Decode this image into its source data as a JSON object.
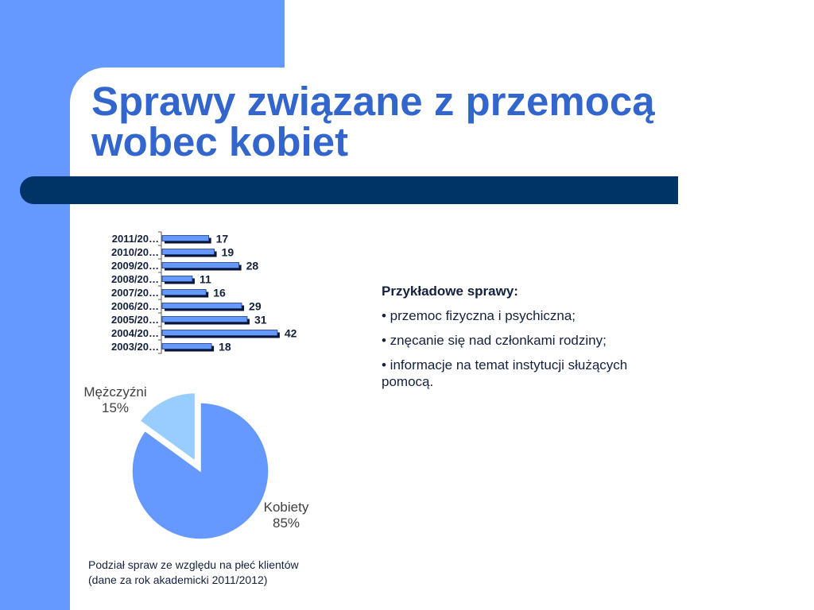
{
  "slide": {
    "title_lines": [
      "Sprawy związane z przemocą",
      "wobec kobiet"
    ]
  },
  "examples": {
    "heading": "Przykładowe sprawy:",
    "items": [
      "• przemoc fizyczna i psychiczna;",
      "• znęcanie się nad członkami rodziny;",
      "• informacje na temat instytucji służących pomocą."
    ]
  },
  "caption": {
    "lines": [
      "Podział spraw ze względu na płeć klientów",
      "(dane za rok akademicki 2011/2012)"
    ]
  },
  "colors": {
    "accent": "#6699FF",
    "title": "#3366CC",
    "band": "#003366",
    "text": "#14213D",
    "pie_label": "#404040",
    "bar_shadow": "#0B1433",
    "bar_outline": "#1F3A7A"
  },
  "chart_data": [
    {
      "type": "bar",
      "orientation": "horizontal",
      "categories": [
        "2011/20…",
        "2010/20…",
        "2009/20…",
        "2008/20…",
        "2007/20…",
        "2006/20…",
        "2005/20…",
        "2004/20…",
        "2003/20…"
      ],
      "values": [
        17,
        19,
        28,
        11,
        16,
        29,
        31,
        42,
        18
      ],
      "data_labels": true,
      "grid": false,
      "legend": "none"
    },
    {
      "type": "pie",
      "categories": [
        "Mężczyźni",
        "Kobiety"
      ],
      "values": [
        15,
        85
      ],
      "value_labels": [
        "15%",
        "85%"
      ],
      "colors": [
        "#99CCFF",
        "#6699FF"
      ],
      "exploded": [
        true,
        false
      ],
      "legend": "none"
    }
  ]
}
